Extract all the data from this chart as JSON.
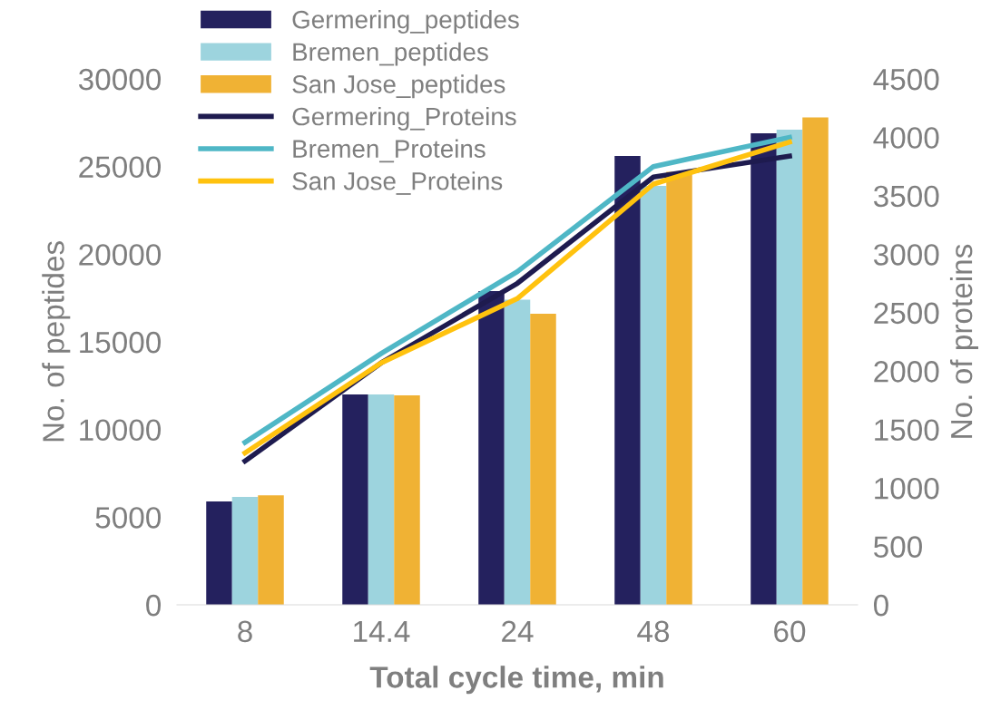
{
  "chart_data": {
    "type": "bar",
    "xlabel": "Total cycle time, min",
    "ylabel": "No. of peptides",
    "y2label": "No. of proteins",
    "categories": [
      "8",
      "14.4",
      "24",
      "48",
      "60"
    ],
    "series": [
      {
        "name": "Germering_peptides",
        "color": "#24215e",
        "values": [
          5900,
          12000,
          17900,
          25600,
          26900
        ]
      },
      {
        "name": "Bremen_peptides",
        "color": "#9dd4de",
        "values": [
          6150,
          12000,
          17400,
          23900,
          27100
        ]
      },
      {
        "name": "San Jose_peptides",
        "color": "#f0b234",
        "values": [
          6250,
          11950,
          16600,
          24700,
          27800
        ]
      },
      {
        "name": "Germering_Proteins",
        "type": "line",
        "axis": "y2",
        "color": "#1e1b4f",
        "values": [
          1230,
          2070,
          2750,
          3660,
          3840
        ]
      },
      {
        "name": "Bremen_Proteins",
        "type": "line",
        "axis": "y2",
        "color": "#4fb7c6",
        "values": [
          1390,
          2150,
          2850,
          3750,
          4000
        ]
      },
      {
        "name": "San Jose_Proteins",
        "type": "line",
        "axis": "y2",
        "color": "#ffc20e",
        "values": [
          1300,
          2070,
          2620,
          3600,
          3960
        ]
      }
    ],
    "ylim": [
      0,
      30000
    ],
    "yticks": [
      0,
      5000,
      10000,
      15000,
      20000,
      25000,
      30000
    ],
    "y2lim": [
      0,
      4500
    ],
    "y2ticks": [
      0,
      500,
      1000,
      1500,
      2000,
      2500,
      3000,
      3500,
      4000,
      4500
    ],
    "grid": false,
    "legend": "top left",
    "marker": "none",
    "line_style": "solid"
  }
}
